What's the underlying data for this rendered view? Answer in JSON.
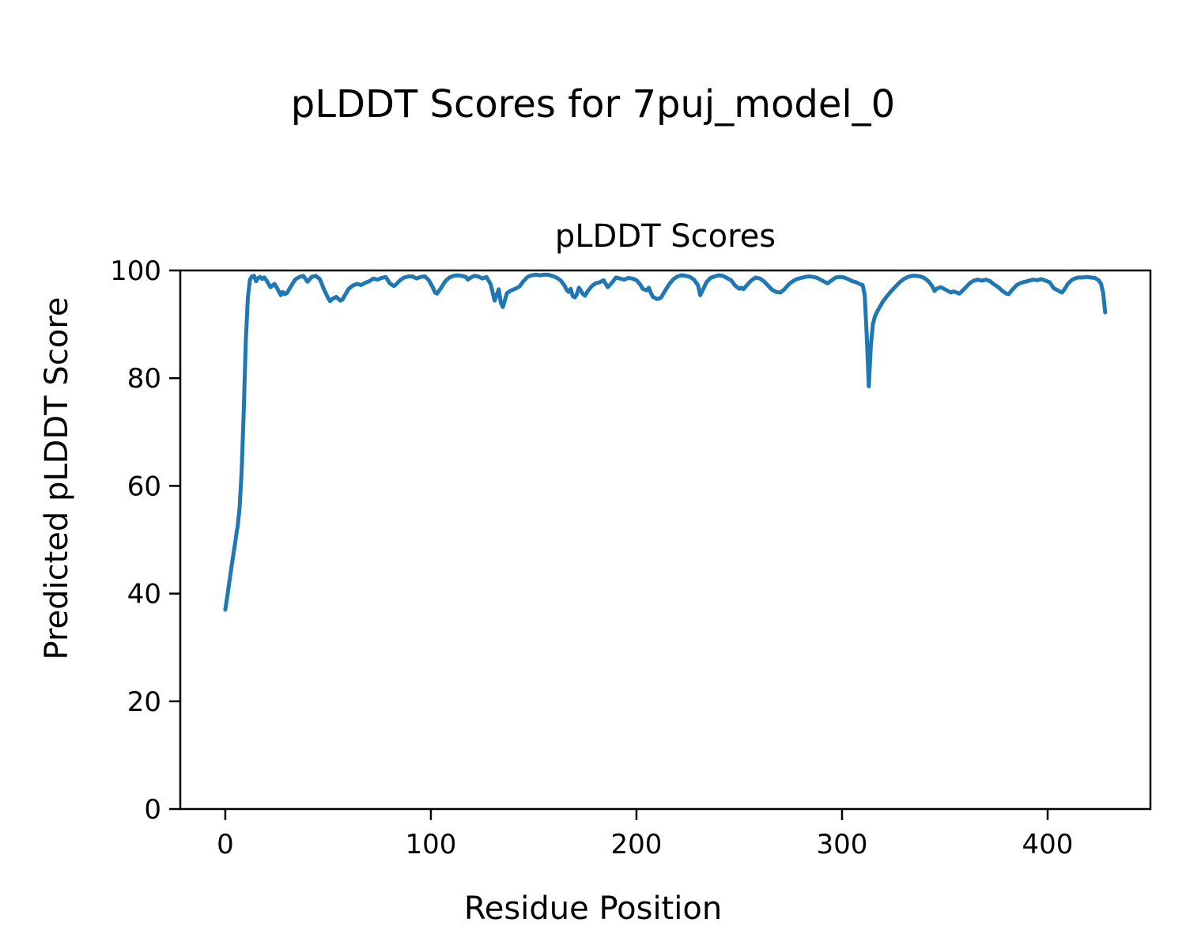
{
  "figure": {
    "suptitle": "pLDDT Scores for 7puj_model_0",
    "background_color": "#ffffff",
    "text_color": "#000000"
  },
  "chart_data": {
    "type": "line",
    "title": "pLDDT Scores",
    "xlabel": "Residue Position",
    "ylabel": "Predicted pLDDT Score",
    "xlim": [
      -21.9,
      450.0
    ],
    "ylim": [
      0,
      100
    ],
    "xticks": [
      0,
      100,
      200,
      300,
      400
    ],
    "yticks": [
      0,
      20,
      40,
      60,
      80,
      100
    ],
    "grid": false,
    "legend": "none",
    "line_color": "#1f77b4",
    "line_width": 5,
    "axis_color": "#000000",
    "series": [
      {
        "name": "pLDDT",
        "points": [
          [
            0,
            37.0
          ],
          [
            1,
            39.5
          ],
          [
            2,
            42.2
          ],
          [
            3,
            44.9
          ],
          [
            4,
            47.4
          ],
          [
            5,
            49.9
          ],
          [
            5.6,
            51.6
          ],
          [
            6,
            52.4
          ],
          [
            7,
            56.0
          ],
          [
            8,
            63.0
          ],
          [
            9,
            74.0
          ],
          [
            10,
            87.0
          ],
          [
            11,
            95.0
          ],
          [
            12,
            98.3
          ],
          [
            13,
            98.9
          ],
          [
            14,
            99.0
          ],
          [
            15,
            98.0
          ],
          [
            16,
            98.6
          ],
          [
            17,
            98.8
          ],
          [
            18,
            98.4
          ],
          [
            19,
            98.7
          ],
          [
            20,
            98.2
          ],
          [
            22,
            96.9
          ],
          [
            24,
            97.5
          ],
          [
            26,
            96.2
          ],
          [
            27,
            95.4
          ],
          [
            28,
            96.0
          ],
          [
            29,
            95.6
          ],
          [
            30,
            95.8
          ],
          [
            32,
            97.1
          ],
          [
            34,
            98.3
          ],
          [
            36,
            98.8
          ],
          [
            38,
            99.0
          ],
          [
            40,
            97.9
          ],
          [
            42,
            98.8
          ],
          [
            44,
            99.0
          ],
          [
            46,
            98.4
          ],
          [
            48,
            96.5
          ],
          [
            50,
            94.9
          ],
          [
            51,
            94.3
          ],
          [
            52,
            94.7
          ],
          [
            54,
            95.1
          ],
          [
            56,
            94.4
          ],
          [
            57,
            94.6
          ],
          [
            58,
            95.3
          ],
          [
            60,
            96.6
          ],
          [
            62,
            97.2
          ],
          [
            64,
            97.5
          ],
          [
            66,
            97.3
          ],
          [
            68,
            97.7
          ],
          [
            70,
            98.0
          ],
          [
            72,
            98.5
          ],
          [
            74,
            98.3
          ],
          [
            76,
            98.6
          ],
          [
            78,
            98.8
          ],
          [
            80,
            97.6
          ],
          [
            82,
            97.1
          ],
          [
            83,
            97.4
          ],
          [
            85,
            98.2
          ],
          [
            87,
            98.7
          ],
          [
            89,
            98.9
          ],
          [
            91,
            98.9
          ],
          [
            93,
            98.5
          ],
          [
            95,
            98.8
          ],
          [
            97,
            98.9
          ],
          [
            99,
            98.2
          ],
          [
            101,
            96.8
          ],
          [
            102,
            95.9
          ],
          [
            103,
            95.7
          ],
          [
            105,
            96.8
          ],
          [
            107,
            98.0
          ],
          [
            109,
            98.7
          ],
          [
            111,
            99.0
          ],
          [
            113,
            99.1
          ],
          [
            115,
            99.0
          ],
          [
            117,
            98.8
          ],
          [
            118,
            98.3
          ],
          [
            119,
            98.6
          ],
          [
            121,
            99.0
          ],
          [
            123,
            98.9
          ],
          [
            125,
            98.5
          ],
          [
            127,
            98.8
          ],
          [
            129,
            97.5
          ],
          [
            131,
            94.4
          ],
          [
            132,
            95.5
          ],
          [
            133,
            96.5
          ],
          [
            134,
            94.0
          ],
          [
            135,
            93.2
          ],
          [
            136,
            94.5
          ],
          [
            137,
            95.8
          ],
          [
            139,
            96.3
          ],
          [
            141,
            96.6
          ],
          [
            143,
            97.0
          ],
          [
            145,
            98.0
          ],
          [
            147,
            98.8
          ],
          [
            149,
            99.1
          ],
          [
            151,
            99.2
          ],
          [
            153,
            99.1
          ],
          [
            155,
            99.2
          ],
          [
            157,
            99.2
          ],
          [
            159,
            99.0
          ],
          [
            161,
            98.7
          ],
          [
            163,
            98.2
          ],
          [
            165,
            97.2
          ],
          [
            166,
            96.4
          ],
          [
            167,
            96.0
          ],
          [
            168,
            96.6
          ],
          [
            169,
            95.2
          ],
          [
            170,
            95.0
          ],
          [
            171,
            95.6
          ],
          [
            172,
            96.8
          ],
          [
            174,
            95.6
          ],
          [
            175,
            95.3
          ],
          [
            176,
            96.0
          ],
          [
            178,
            97.0
          ],
          [
            180,
            97.6
          ],
          [
            182,
            97.8
          ],
          [
            184,
            98.2
          ],
          [
            186,
            96.9
          ],
          [
            188,
            97.7
          ],
          [
            190,
            98.7
          ],
          [
            192,
            98.5
          ],
          [
            194,
            98.3
          ],
          [
            196,
            98.6
          ],
          [
            198,
            98.5
          ],
          [
            200,
            98.2
          ],
          [
            202,
            97.3
          ],
          [
            203,
            96.6
          ],
          [
            205,
            96.3
          ],
          [
            206,
            96.8
          ],
          [
            207,
            95.8
          ],
          [
            208,
            95.1
          ],
          [
            209,
            94.9
          ],
          [
            210,
            94.7
          ],
          [
            211,
            94.8
          ],
          [
            212,
            95.0
          ],
          [
            214,
            96.3
          ],
          [
            216,
            97.5
          ],
          [
            218,
            98.4
          ],
          [
            220,
            98.9
          ],
          [
            222,
            99.1
          ],
          [
            224,
            99.0
          ],
          [
            226,
            98.8
          ],
          [
            228,
            98.3
          ],
          [
            230,
            97.2
          ],
          [
            231,
            95.4
          ],
          [
            232,
            96.2
          ],
          [
            234,
            97.8
          ],
          [
            236,
            98.6
          ],
          [
            238,
            98.9
          ],
          [
            240,
            99.1
          ],
          [
            242,
            99.0
          ],
          [
            244,
            98.6
          ],
          [
            246,
            98.2
          ],
          [
            248,
            97.2
          ],
          [
            250,
            96.6
          ],
          [
            251,
            96.8
          ],
          [
            252,
            96.5
          ],
          [
            254,
            97.4
          ],
          [
            256,
            98.2
          ],
          [
            258,
            98.7
          ],
          [
            260,
            98.5
          ],
          [
            262,
            98.0
          ],
          [
            264,
            97.2
          ],
          [
            266,
            96.4
          ],
          [
            268,
            96.0
          ],
          [
            270,
            95.9
          ],
          [
            272,
            96.5
          ],
          [
            274,
            97.4
          ],
          [
            276,
            98.0
          ],
          [
            278,
            98.4
          ],
          [
            280,
            98.6
          ],
          [
            282,
            98.8
          ],
          [
            284,
            98.9
          ],
          [
            286,
            98.8
          ],
          [
            288,
            98.6
          ],
          [
            290,
            98.2
          ],
          [
            292,
            97.8
          ],
          [
            293,
            97.6
          ],
          [
            295,
            98.2
          ],
          [
            297,
            98.7
          ],
          [
            299,
            98.8
          ],
          [
            301,
            98.7
          ],
          [
            303,
            98.4
          ],
          [
            305,
            98.0
          ],
          [
            307,
            97.8
          ],
          [
            308,
            97.6
          ],
          [
            309,
            97.4
          ],
          [
            310,
            97.3
          ],
          [
            311,
            95.5
          ],
          [
            312,
            88.0
          ],
          [
            313,
            78.5
          ],
          [
            314,
            86.0
          ],
          [
            315,
            90.0
          ],
          [
            316,
            91.5
          ],
          [
            317,
            92.3
          ],
          [
            318,
            93.0
          ],
          [
            320,
            94.3
          ],
          [
            322,
            95.3
          ],
          [
            324,
            96.2
          ],
          [
            326,
            97.0
          ],
          [
            328,
            97.8
          ],
          [
            330,
            98.4
          ],
          [
            332,
            98.8
          ],
          [
            334,
            99.0
          ],
          [
            336,
            99.0
          ],
          [
            338,
            98.9
          ],
          [
            340,
            98.6
          ],
          [
            342,
            98.0
          ],
          [
            344,
            97.0
          ],
          [
            345,
            96.2
          ],
          [
            346,
            96.6
          ],
          [
            348,
            96.9
          ],
          [
            350,
            96.5
          ],
          [
            352,
            96.1
          ],
          [
            353,
            95.9
          ],
          [
            354,
            96.1
          ],
          [
            355,
            96.0
          ],
          [
            357,
            95.7
          ],
          [
            358,
            96.0
          ],
          [
            360,
            96.8
          ],
          [
            362,
            97.6
          ],
          [
            364,
            98.1
          ],
          [
            366,
            98.3
          ],
          [
            368,
            98.1
          ],
          [
            370,
            98.3
          ],
          [
            372,
            98.0
          ],
          [
            374,
            97.4
          ],
          [
            376,
            96.9
          ],
          [
            378,
            96.2
          ],
          [
            380,
            95.7
          ],
          [
            381,
            95.6
          ],
          [
            383,
            96.5
          ],
          [
            385,
            97.3
          ],
          [
            387,
            97.7
          ],
          [
            389,
            97.9
          ],
          [
            391,
            98.1
          ],
          [
            393,
            98.3
          ],
          [
            395,
            98.2
          ],
          [
            397,
            98.4
          ],
          [
            399,
            98.1
          ],
          [
            401,
            97.8
          ],
          [
            403,
            96.7
          ],
          [
            405,
            96.3
          ],
          [
            406,
            96.1
          ],
          [
            407,
            95.9
          ],
          [
            408,
            96.4
          ],
          [
            410,
            97.6
          ],
          [
            412,
            98.3
          ],
          [
            414,
            98.6
          ],
          [
            415,
            98.7
          ],
          [
            417,
            98.7
          ],
          [
            419,
            98.8
          ],
          [
            421,
            98.7
          ],
          [
            423,
            98.6
          ],
          [
            424,
            98.4
          ],
          [
            425,
            98.1
          ],
          [
            426,
            97.5
          ],
          [
            427,
            95.8
          ],
          [
            428,
            92.2
          ]
        ]
      }
    ]
  }
}
